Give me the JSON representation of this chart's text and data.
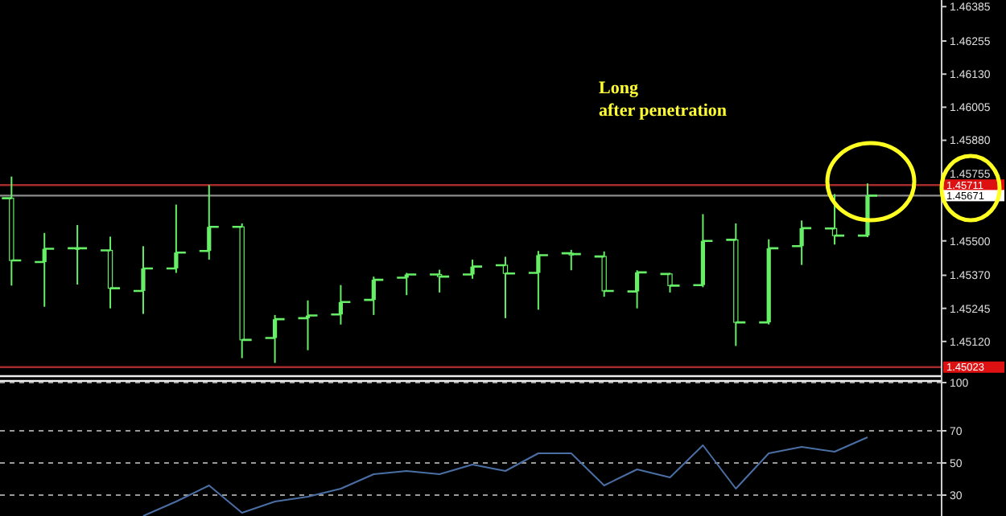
{
  "chart_data": [
    {
      "type": "candlestick",
      "categories": [
        null,
        null,
        null,
        null,
        null,
        null,
        null,
        null,
        null,
        null,
        null,
        null,
        null,
        null,
        null,
        null,
        null,
        null,
        null,
        null,
        null,
        null,
        null,
        null,
        null,
        null,
        null
      ],
      "ohlc": [
        [
          1.45661,
          1.45743,
          1.45331,
          1.45426
        ],
        [
          1.4542,
          1.4553,
          1.45251,
          1.4547
        ],
        [
          1.45472,
          1.4556,
          1.45335,
          1.45472
        ],
        [
          1.45464,
          1.45516,
          1.45245,
          1.45321
        ],
        [
          1.45311,
          1.4548,
          1.45224,
          1.45396
        ],
        [
          1.45396,
          1.45637,
          1.45379,
          1.45456
        ],
        [
          1.45462,
          1.45711,
          1.45429,
          1.45553
        ],
        [
          1.45553,
          1.45566,
          1.45057,
          1.45126
        ],
        [
          1.45133,
          1.4522,
          1.45039,
          1.45204
        ],
        [
          1.45208,
          1.45275,
          1.45087,
          1.45218
        ],
        [
          1.45222,
          1.45333,
          1.45184,
          1.45269
        ],
        [
          1.45277,
          1.45365,
          1.4522,
          1.45353
        ],
        [
          1.45361,
          1.45379,
          1.45295,
          1.45373
        ],
        [
          1.45373,
          1.45391,
          1.45305,
          1.45365
        ],
        [
          1.45373,
          1.45429,
          1.45357,
          1.45403
        ],
        [
          1.45408,
          1.4544,
          1.45208,
          1.45377
        ],
        [
          1.45379,
          1.45462,
          1.4524,
          1.45446
        ],
        [
          1.45453,
          1.45466,
          1.45389,
          1.4545
        ],
        [
          1.45441,
          1.4546,
          1.45289,
          1.45311
        ],
        [
          1.45309,
          1.45389,
          1.45245,
          1.45381
        ],
        [
          1.45375,
          1.45379,
          1.45305,
          1.45331
        ],
        [
          1.45333,
          1.45601,
          1.45325,
          1.455
        ],
        [
          1.45504,
          1.45566,
          1.45103,
          1.45192
        ],
        [
          1.45192,
          1.45506,
          1.45184,
          1.45472
        ],
        [
          1.4548,
          1.45577,
          1.45409,
          1.45548
        ],
        [
          1.45547,
          1.45677,
          1.45486,
          1.4552
        ],
        [
          1.4552,
          1.45717,
          1.45514,
          1.45671
        ]
      ],
      "color": "#66ee66",
      "ylim": [
        1.44995,
        1.4641
      ],
      "yticks": [
        {
          "value": 1.46385,
          "label": "1.46385"
        },
        {
          "value": 1.46255,
          "label": "1.46255"
        },
        {
          "value": 1.4613,
          "label": "1.46130"
        },
        {
          "value": 1.46005,
          "label": "1.46005"
        },
        {
          "value": 1.4588,
          "label": "1.45880"
        },
        {
          "value": 1.45755,
          "label": "1.45755"
        },
        {
          "value": 1.455,
          "label": "1.45500"
        },
        {
          "value": 1.4537,
          "label": "1.45370"
        },
        {
          "value": 1.45245,
          "label": "1.45245"
        },
        {
          "value": 1.4512,
          "label": "1.45120"
        }
      ],
      "ref_lines": [
        {
          "axis": "y",
          "value": 1.45711,
          "label": "1.45711",
          "color": "#a52a2a"
        },
        {
          "axis": "y",
          "value": 1.45671,
          "label": "1.45671",
          "color": "#8c8c8c"
        },
        {
          "axis": "y",
          "value": 1.45023,
          "label": "1.45023",
          "color": "#a52a2a"
        }
      ],
      "annotations": [
        "Long\nafter penetration"
      ]
    },
    {
      "type": "line",
      "categories": [
        null,
        null,
        null,
        null,
        null,
        null,
        null,
        null,
        null,
        null,
        null,
        null,
        null,
        null,
        null,
        null,
        null,
        null,
        null,
        null,
        null,
        null,
        null,
        null,
        null,
        null,
        null
      ],
      "series": [
        {
          "color": "#4a6fa5",
          "values": [
            null,
            null,
            null,
            null,
            17,
            26,
            36,
            19,
            26,
            29,
            34,
            43,
            45,
            43,
            49,
            45,
            56,
            56,
            36,
            46,
            41,
            61,
            34,
            56,
            60,
            57,
            66
          ]
        }
      ],
      "ylim": [
        17,
        100
      ],
      "yticks": [
        100,
        70,
        50,
        30
      ],
      "grid": "y"
    }
  ]
}
